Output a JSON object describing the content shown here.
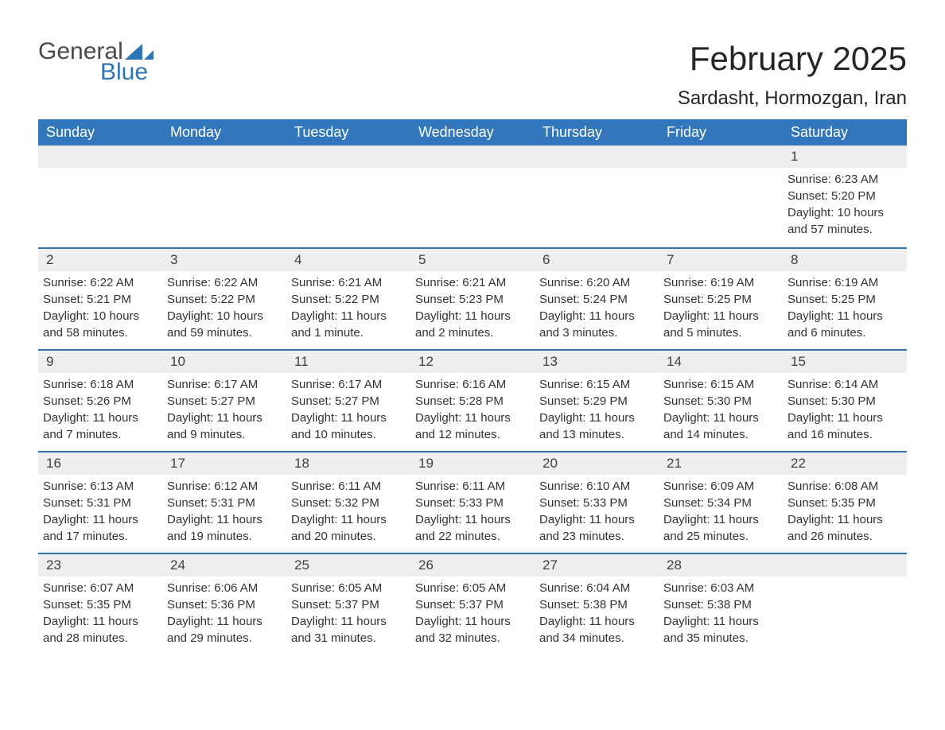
{
  "logo": {
    "word1": "General",
    "word2": "Blue",
    "accent_color": "#2e75b6",
    "gray_color": "#4a4a4a"
  },
  "title": "February 2025",
  "location": "Sardasht, Hormozgan, Iran",
  "header_bg": "#3277bb",
  "row_border_color": "#2e75b6",
  "daynum_bg": "#eeeeee",
  "text_color": "#333333",
  "background_color": "#ffffff",
  "font_family": "Arial",
  "day_names": [
    "Sunday",
    "Monday",
    "Tuesday",
    "Wednesday",
    "Thursday",
    "Friday",
    "Saturday"
  ],
  "weeks": [
    [
      null,
      null,
      null,
      null,
      null,
      null,
      {
        "n": "1",
        "sunrise": "6:23 AM",
        "sunset": "5:20 PM",
        "daylight": "10 hours and 57 minutes."
      }
    ],
    [
      {
        "n": "2",
        "sunrise": "6:22 AM",
        "sunset": "5:21 PM",
        "daylight": "10 hours and 58 minutes."
      },
      {
        "n": "3",
        "sunrise": "6:22 AM",
        "sunset": "5:22 PM",
        "daylight": "10 hours and 59 minutes."
      },
      {
        "n": "4",
        "sunrise": "6:21 AM",
        "sunset": "5:22 PM",
        "daylight": "11 hours and 1 minute."
      },
      {
        "n": "5",
        "sunrise": "6:21 AM",
        "sunset": "5:23 PM",
        "daylight": "11 hours and 2 minutes."
      },
      {
        "n": "6",
        "sunrise": "6:20 AM",
        "sunset": "5:24 PM",
        "daylight": "11 hours and 3 minutes."
      },
      {
        "n": "7",
        "sunrise": "6:19 AM",
        "sunset": "5:25 PM",
        "daylight": "11 hours and 5 minutes."
      },
      {
        "n": "8",
        "sunrise": "6:19 AM",
        "sunset": "5:25 PM",
        "daylight": "11 hours and 6 minutes."
      }
    ],
    [
      {
        "n": "9",
        "sunrise": "6:18 AM",
        "sunset": "5:26 PM",
        "daylight": "11 hours and 7 minutes."
      },
      {
        "n": "10",
        "sunrise": "6:17 AM",
        "sunset": "5:27 PM",
        "daylight": "11 hours and 9 minutes."
      },
      {
        "n": "11",
        "sunrise": "6:17 AM",
        "sunset": "5:27 PM",
        "daylight": "11 hours and 10 minutes."
      },
      {
        "n": "12",
        "sunrise": "6:16 AM",
        "sunset": "5:28 PM",
        "daylight": "11 hours and 12 minutes."
      },
      {
        "n": "13",
        "sunrise": "6:15 AM",
        "sunset": "5:29 PM",
        "daylight": "11 hours and 13 minutes."
      },
      {
        "n": "14",
        "sunrise": "6:15 AM",
        "sunset": "5:30 PM",
        "daylight": "11 hours and 14 minutes."
      },
      {
        "n": "15",
        "sunrise": "6:14 AM",
        "sunset": "5:30 PM",
        "daylight": "11 hours and 16 minutes."
      }
    ],
    [
      {
        "n": "16",
        "sunrise": "6:13 AM",
        "sunset": "5:31 PM",
        "daylight": "11 hours and 17 minutes."
      },
      {
        "n": "17",
        "sunrise": "6:12 AM",
        "sunset": "5:31 PM",
        "daylight": "11 hours and 19 minutes."
      },
      {
        "n": "18",
        "sunrise": "6:11 AM",
        "sunset": "5:32 PM",
        "daylight": "11 hours and 20 minutes."
      },
      {
        "n": "19",
        "sunrise": "6:11 AM",
        "sunset": "5:33 PM",
        "daylight": "11 hours and 22 minutes."
      },
      {
        "n": "20",
        "sunrise": "6:10 AM",
        "sunset": "5:33 PM",
        "daylight": "11 hours and 23 minutes."
      },
      {
        "n": "21",
        "sunrise": "6:09 AM",
        "sunset": "5:34 PM",
        "daylight": "11 hours and 25 minutes."
      },
      {
        "n": "22",
        "sunrise": "6:08 AM",
        "sunset": "5:35 PM",
        "daylight": "11 hours and 26 minutes."
      }
    ],
    [
      {
        "n": "23",
        "sunrise": "6:07 AM",
        "sunset": "5:35 PM",
        "daylight": "11 hours and 28 minutes."
      },
      {
        "n": "24",
        "sunrise": "6:06 AM",
        "sunset": "5:36 PM",
        "daylight": "11 hours and 29 minutes."
      },
      {
        "n": "25",
        "sunrise": "6:05 AM",
        "sunset": "5:37 PM",
        "daylight": "11 hours and 31 minutes."
      },
      {
        "n": "26",
        "sunrise": "6:05 AM",
        "sunset": "5:37 PM",
        "daylight": "11 hours and 32 minutes."
      },
      {
        "n": "27",
        "sunrise": "6:04 AM",
        "sunset": "5:38 PM",
        "daylight": "11 hours and 34 minutes."
      },
      {
        "n": "28",
        "sunrise": "6:03 AM",
        "sunset": "5:38 PM",
        "daylight": "11 hours and 35 minutes."
      },
      null
    ]
  ],
  "labels": {
    "sunrise": "Sunrise: ",
    "sunset": "Sunset: ",
    "daylight": "Daylight: "
  }
}
